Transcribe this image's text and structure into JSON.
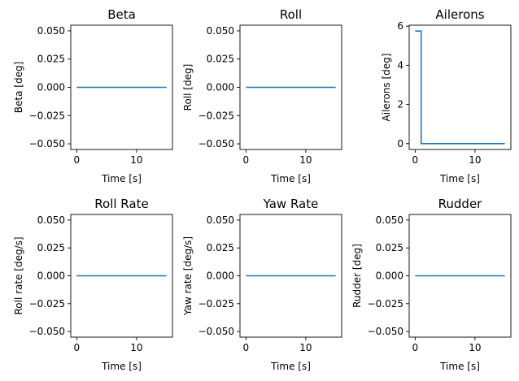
{
  "colors": {
    "line": "#1f77b4",
    "axes": "#000000",
    "background": "#ffffff"
  },
  "chart_data": [
    {
      "id": "beta",
      "type": "line",
      "title": "Beta",
      "xlabel": "Time [s]",
      "ylabel": "Beta [deg]",
      "xlim": [
        -1,
        16
      ],
      "ylim": [
        -0.055,
        0.055
      ],
      "xticks": [
        0,
        10
      ],
      "xtick_labels": [
        "0",
        "10"
      ],
      "yticks": [
        -0.05,
        -0.025,
        0,
        0.025,
        0.05
      ],
      "ytick_labels": [
        "−0.050",
        "−0.025",
        "0.000",
        "0.025",
        "0.050"
      ],
      "series": [
        {
          "x": [
            0,
            15
          ],
          "y": [
            0,
            0
          ]
        }
      ]
    },
    {
      "id": "roll",
      "type": "line",
      "title": "Roll",
      "xlabel": "Time [s]",
      "ylabel": "Roll [deg]",
      "xlim": [
        -1,
        16
      ],
      "ylim": [
        -0.055,
        0.055
      ],
      "xticks": [
        0,
        10
      ],
      "xtick_labels": [
        "0",
        "10"
      ],
      "yticks": [
        -0.05,
        -0.025,
        0,
        0.025,
        0.05
      ],
      "ytick_labels": [
        "−0.050",
        "−0.025",
        "0.000",
        "0.025",
        "0.050"
      ],
      "series": [
        {
          "x": [
            0,
            15
          ],
          "y": [
            0,
            0
          ]
        }
      ]
    },
    {
      "id": "ailerons",
      "type": "line",
      "title": "Ailerons",
      "xlabel": "Time [s]",
      "ylabel": "Ailerons [deg]",
      "xlim": [
        -1,
        16
      ],
      "ylim": [
        -0.3,
        6.05
      ],
      "xticks": [
        0,
        10
      ],
      "xtick_labels": [
        "0",
        "10"
      ],
      "yticks": [
        0,
        2,
        4,
        6
      ],
      "ytick_labels": [
        "0",
        "2",
        "4",
        "6"
      ],
      "series": [
        {
          "x": [
            0,
            1,
            1,
            15
          ],
          "y": [
            5.75,
            5.75,
            0,
            0
          ]
        }
      ]
    },
    {
      "id": "roll-rate",
      "type": "line",
      "title": "Roll Rate",
      "xlabel": "Time [s]",
      "ylabel": "Roll rate [deg/s]",
      "xlim": [
        -1,
        16
      ],
      "ylim": [
        -0.055,
        0.055
      ],
      "xticks": [
        0,
        10
      ],
      "xtick_labels": [
        "0",
        "10"
      ],
      "yticks": [
        -0.05,
        -0.025,
        0,
        0.025,
        0.05
      ],
      "ytick_labels": [
        "−0.050",
        "−0.025",
        "0.000",
        "0.025",
        "0.050"
      ],
      "series": [
        {
          "x": [
            0,
            15
          ],
          "y": [
            0,
            0
          ]
        }
      ]
    },
    {
      "id": "yaw-rate",
      "type": "line",
      "title": "Yaw Rate",
      "xlabel": "Time [s]",
      "ylabel": "Yaw rate [deg/s]",
      "xlim": [
        -1,
        16
      ],
      "ylim": [
        -0.055,
        0.055
      ],
      "xticks": [
        0,
        10
      ],
      "xtick_labels": [
        "0",
        "10"
      ],
      "yticks": [
        -0.05,
        -0.025,
        0,
        0.025,
        0.05
      ],
      "ytick_labels": [
        "−0.050",
        "−0.025",
        "0.000",
        "0.025",
        "0.050"
      ],
      "series": [
        {
          "x": [
            0,
            15
          ],
          "y": [
            0,
            0
          ]
        }
      ]
    },
    {
      "id": "rudder",
      "type": "line",
      "title": "Rudder",
      "xlabel": "Time [s]",
      "ylabel": "Rudder [deg]",
      "xlim": [
        -1,
        16
      ],
      "ylim": [
        -0.055,
        0.055
      ],
      "xticks": [
        0,
        10
      ],
      "xtick_labels": [
        "0",
        "10"
      ],
      "yticks": [
        -0.05,
        -0.025,
        0,
        0.025,
        0.05
      ],
      "ytick_labels": [
        "−0.050",
        "−0.025",
        "0.000",
        "0.025",
        "0.050"
      ],
      "series": [
        {
          "x": [
            0,
            15
          ],
          "y": [
            0,
            0
          ]
        }
      ]
    }
  ]
}
